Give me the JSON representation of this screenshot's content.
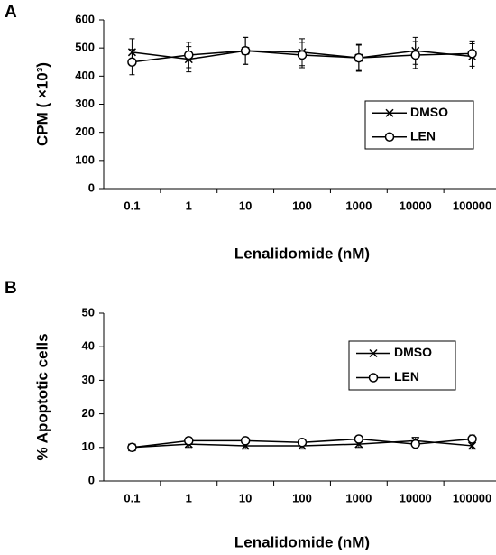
{
  "chart_data": [
    {
      "type": "line",
      "panel": "A",
      "ylabel": "CPM ( ×10³)",
      "xlabel": "Lenalidomide (nM)",
      "categories": [
        "0.1",
        "1",
        "10",
        "100",
        "1000",
        "10000",
        "100000"
      ],
      "ylim": [
        0,
        600
      ],
      "yticks": [
        0,
        100,
        200,
        300,
        400,
        500,
        600
      ],
      "legend": "upper right",
      "series": [
        {
          "name": "DMSO",
          "color": "#000",
          "marker": "x",
          "values": [
            485,
            460,
            490,
            485,
            465,
            490,
            470
          ],
          "errors": [
            48,
            45,
            48,
            48,
            48,
            48,
            45
          ]
        },
        {
          "name": "LEN",
          "color": "#000",
          "marker": "o",
          "values": [
            450,
            475,
            490,
            475,
            465,
            475,
            480
          ],
          "errors": [
            45,
            45,
            48,
            45,
            45,
            48,
            45
          ]
        }
      ]
    },
    {
      "type": "line",
      "panel": "B",
      "ylabel": "% Apoptotic cells",
      "xlabel": "Lenalidomide (nM)",
      "categories": [
        "0.1",
        "1",
        "10",
        "100",
        "1000",
        "10000",
        "100000"
      ],
      "ylim": [
        0,
        50
      ],
      "yticks": [
        0,
        10,
        20,
        30,
        40,
        50
      ],
      "legend": "upper right",
      "series": [
        {
          "name": "DMSO",
          "color": "#000",
          "marker": "x",
          "values": [
            10,
            11,
            10.5,
            10.5,
            11,
            12,
            10.5
          ],
          "errors": [
            1,
            1,
            1,
            1,
            1,
            1,
            1
          ]
        },
        {
          "name": "LEN",
          "color": "#000",
          "marker": "o",
          "values": [
            10,
            12,
            12,
            11.5,
            12.5,
            11,
            12.5
          ],
          "errors": [
            1,
            1,
            1,
            1,
            1,
            1,
            1.2
          ]
        }
      ]
    }
  ]
}
